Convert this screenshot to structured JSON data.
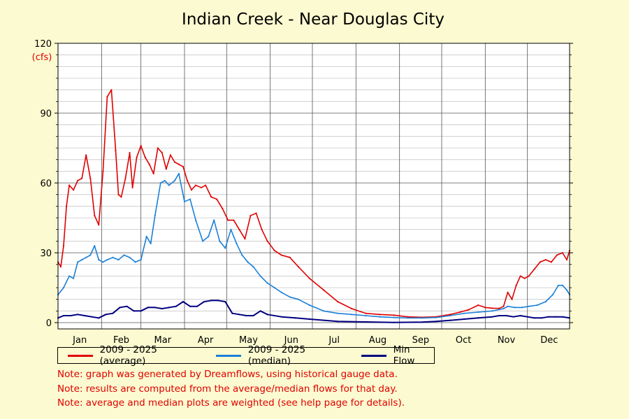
{
  "chart_data": {
    "type": "line",
    "title": "Indian Creek - Near Douglas City",
    "ylabel": "(cfs)",
    "ylim": [
      0,
      120
    ],
    "yticks": [
      0,
      30,
      60,
      90,
      120
    ],
    "months": [
      "Jan",
      "Feb",
      "Mar",
      "Apr",
      "May",
      "Jun",
      "Jul",
      "Aug",
      "Sep",
      "Oct",
      "Nov",
      "Dec"
    ],
    "x_unit": "day of year",
    "xlim": [
      1,
      365
    ],
    "grid": true,
    "legend_position": "bottom",
    "series": [
      {
        "name": "2009 - 2025 (average)",
        "color": "#e00000",
        "x": [
          1,
          3,
          5,
          7,
          9,
          12,
          15,
          18,
          21,
          24,
          27,
          30,
          33,
          36,
          39,
          42,
          44,
          46,
          49,
          52,
          54,
          57,
          60,
          63,
          66,
          69,
          72,
          75,
          78,
          81,
          84,
          87,
          90,
          93,
          96,
          99,
          103,
          106,
          110,
          114,
          118,
          122,
          126,
          130,
          134,
          138,
          142,
          146,
          150,
          155,
          160,
          166,
          172,
          180,
          190,
          200,
          210,
          220,
          230,
          240,
          250,
          260,
          270,
          280,
          287,
          293,
          300,
          305,
          310,
          315,
          318,
          321,
          324,
          327,
          330,
          333,
          336,
          340,
          344,
          348,
          352,
          356,
          360,
          363,
          365
        ],
        "values": [
          26,
          24,
          33,
          50,
          59,
          57,
          61,
          62,
          72,
          62,
          46,
          42,
          65,
          97,
          100,
          74,
          55,
          54,
          62,
          73,
          58,
          71,
          76,
          71,
          68,
          64,
          75,
          73,
          66,
          72,
          69,
          68,
          67,
          61,
          57,
          59,
          58,
          59,
          54,
          53,
          49,
          44,
          44,
          40,
          36,
          46,
          47,
          40,
          35,
          31,
          29,
          28,
          24,
          19,
          14,
          9,
          6,
          4,
          3.5,
          3.2,
          2.5,
          2.3,
          2.5,
          3.5,
          4.5,
          5.5,
          7.5,
          6.5,
          6.2,
          6.1,
          7,
          13,
          10,
          16,
          20,
          19,
          20,
          23,
          26,
          27,
          26,
          29,
          30,
          27,
          31
        ]
      },
      {
        "name": "2009 - 2025 (median)",
        "color": "#1a80d8",
        "x": [
          1,
          5,
          9,
          12,
          15,
          18,
          21,
          24,
          27,
          30,
          33,
          36,
          40,
          44,
          48,
          52,
          56,
          60,
          64,
          67,
          70,
          74,
          77,
          80,
          84,
          87,
          91,
          95,
          99,
          104,
          108,
          112,
          116,
          120,
          124,
          128,
          132,
          136,
          140,
          145,
          150,
          155,
          160,
          166,
          172,
          180,
          190,
          200,
          210,
          220,
          230,
          240,
          250,
          260,
          270,
          280,
          290,
          300,
          310,
          318,
          321,
          326,
          331,
          336,
          342,
          348,
          353,
          357,
          360,
          363,
          365
        ],
        "values": [
          12,
          15,
          20,
          19,
          26,
          27,
          28,
          29,
          33,
          27,
          26,
          27,
          28,
          27,
          29,
          28,
          26,
          27,
          37,
          34,
          46,
          60,
          61,
          59,
          61,
          64,
          52,
          53,
          44,
          35,
          37,
          44,
          35,
          32,
          40,
          34,
          29,
          26,
          24,
          20,
          17,
          15,
          13,
          11,
          10,
          7.5,
          5,
          4,
          3.5,
          3,
          2.5,
          2.2,
          2,
          2,
          2.2,
          3,
          4,
          4.5,
          5,
          6,
          7,
          6.5,
          6.5,
          7,
          7.5,
          9,
          12,
          16,
          16,
          14,
          12
        ]
      },
      {
        "name": "Min Flow",
        "color": "#000080",
        "x": [
          1,
          5,
          10,
          15,
          20,
          25,
          30,
          35,
          40,
          45,
          50,
          55,
          60,
          65,
          70,
          75,
          80,
          85,
          90,
          95,
          100,
          105,
          110,
          115,
          120,
          125,
          130,
          135,
          140,
          145,
          150,
          160,
          170,
          180,
          200,
          220,
          240,
          260,
          270,
          280,
          290,
          300,
          310,
          315,
          320,
          325,
          330,
          335,
          340,
          345,
          350,
          355,
          360,
          365
        ],
        "values": [
          2,
          3,
          3,
          3.5,
          3,
          2.5,
          2,
          3.5,
          4,
          6.5,
          7,
          5,
          5,
          6.5,
          6.5,
          6,
          6.5,
          7,
          9,
          7,
          7,
          9,
          9.5,
          9.5,
          9,
          4,
          3.5,
          3,
          3,
          5,
          3.5,
          2.5,
          2,
          1.5,
          0.5,
          0.3,
          0.1,
          0.2,
          0.5,
          1,
          1.5,
          2,
          2.5,
          3,
          3,
          2.5,
          3,
          2.5,
          2,
          2,
          2.5,
          2.5,
          2.5,
          2
        ]
      }
    ]
  },
  "notes": [
    "Note: graph was generated by Dreamflows, using historical gauge data.",
    "Note: results are computed from the average/median flows for that day.",
    "Note: average and median plots are weighted (see help page for details)."
  ]
}
